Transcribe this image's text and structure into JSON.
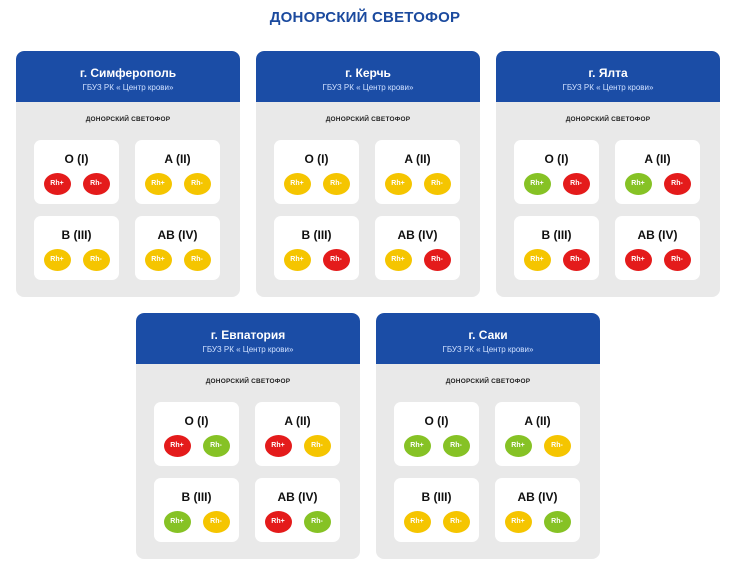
{
  "title": "ДОНОРСКИЙ СВЕТОФОР",
  "colors": {
    "red": "#e41b1b",
    "yellow": "#f5c500",
    "green": "#86c225",
    "header_blue": "#1b4da6"
  },
  "cards": [
    {
      "city": "г. Симферополь",
      "org": "ГБУЗ РК « Центр крови»",
      "subtitle": "ДОНОРСКИЙ СВЕТОФОР",
      "groups": [
        {
          "name": "O (I)",
          "rh": [
            {
              "label": "Rh+",
              "status": "red"
            },
            {
              "label": "Rh-",
              "status": "red"
            }
          ]
        },
        {
          "name": "A (II)",
          "rh": [
            {
              "label": "Rh+",
              "status": "yellow"
            },
            {
              "label": "Rh-",
              "status": "yellow"
            }
          ]
        },
        {
          "name": "B (III)",
          "rh": [
            {
              "label": "Rh+",
              "status": "yellow"
            },
            {
              "label": "Rh-",
              "status": "yellow"
            }
          ]
        },
        {
          "name": "AB (IV)",
          "rh": [
            {
              "label": "Rh+",
              "status": "yellow"
            },
            {
              "label": "Rh-",
              "status": "yellow"
            }
          ]
        }
      ]
    },
    {
      "city": "г. Керчь",
      "org": "ГБУЗ РК « Центр крови»",
      "subtitle": "ДОНОРСКИЙ СВЕТОФОР",
      "groups": [
        {
          "name": "O (I)",
          "rh": [
            {
              "label": "Rh+",
              "status": "yellow"
            },
            {
              "label": "Rh-",
              "status": "yellow"
            }
          ]
        },
        {
          "name": "A (II)",
          "rh": [
            {
              "label": "Rh+",
              "status": "yellow"
            },
            {
              "label": "Rh-",
              "status": "yellow"
            }
          ]
        },
        {
          "name": "B (III)",
          "rh": [
            {
              "label": "Rh+",
              "status": "yellow"
            },
            {
              "label": "Rh-",
              "status": "red"
            }
          ]
        },
        {
          "name": "AB (IV)",
          "rh": [
            {
              "label": "Rh+",
              "status": "yellow"
            },
            {
              "label": "Rh-",
              "status": "red"
            }
          ]
        }
      ]
    },
    {
      "city": "г. Ялта",
      "org": "ГБУЗ РК « Центр крови»",
      "subtitle": "ДОНОРСКИЙ СВЕТОФОР",
      "groups": [
        {
          "name": "O (I)",
          "rh": [
            {
              "label": "Rh+",
              "status": "green"
            },
            {
              "label": "Rh-",
              "status": "red"
            }
          ]
        },
        {
          "name": "A (II)",
          "rh": [
            {
              "label": "Rh+",
              "status": "green"
            },
            {
              "label": "Rh-",
              "status": "red"
            }
          ]
        },
        {
          "name": "B (III)",
          "rh": [
            {
              "label": "Rh+",
              "status": "yellow"
            },
            {
              "label": "Rh-",
              "status": "red"
            }
          ]
        },
        {
          "name": "AB (IV)",
          "rh": [
            {
              "label": "Rh+",
              "status": "red"
            },
            {
              "label": "Rh-",
              "status": "red"
            }
          ]
        }
      ]
    },
    {
      "city": "г. Евпатория",
      "org": "ГБУЗ РК « Центр крови»",
      "subtitle": "ДОНОРСКИЙ СВЕТОФОР",
      "groups": [
        {
          "name": "O (I)",
          "rh": [
            {
              "label": "Rh+",
              "status": "red"
            },
            {
              "label": "Rh-",
              "status": "green"
            }
          ]
        },
        {
          "name": "A (II)",
          "rh": [
            {
              "label": "Rh+",
              "status": "red"
            },
            {
              "label": "Rh-",
              "status": "yellow"
            }
          ]
        },
        {
          "name": "B (III)",
          "rh": [
            {
              "label": "Rh+",
              "status": "green"
            },
            {
              "label": "Rh-",
              "status": "yellow"
            }
          ]
        },
        {
          "name": "AB (IV)",
          "rh": [
            {
              "label": "Rh+",
              "status": "red"
            },
            {
              "label": "Rh-",
              "status": "green"
            }
          ]
        }
      ]
    },
    {
      "city": "г. Саки",
      "org": "ГБУЗ РК « Центр крови»",
      "subtitle": "ДОНОРСКИЙ СВЕТОФОР",
      "groups": [
        {
          "name": "O (I)",
          "rh": [
            {
              "label": "Rh+",
              "status": "green"
            },
            {
              "label": "Rh-",
              "status": "green"
            }
          ]
        },
        {
          "name": "A (II)",
          "rh": [
            {
              "label": "Rh+",
              "status": "green"
            },
            {
              "label": "Rh-",
              "status": "yellow"
            }
          ]
        },
        {
          "name": "B (III)",
          "rh": [
            {
              "label": "Rh+",
              "status": "yellow"
            },
            {
              "label": "Rh-",
              "status": "yellow"
            }
          ]
        },
        {
          "name": "AB (IV)",
          "rh": [
            {
              "label": "Rh+",
              "status": "yellow"
            },
            {
              "label": "Rh-",
              "status": "green"
            }
          ]
        }
      ]
    }
  ]
}
